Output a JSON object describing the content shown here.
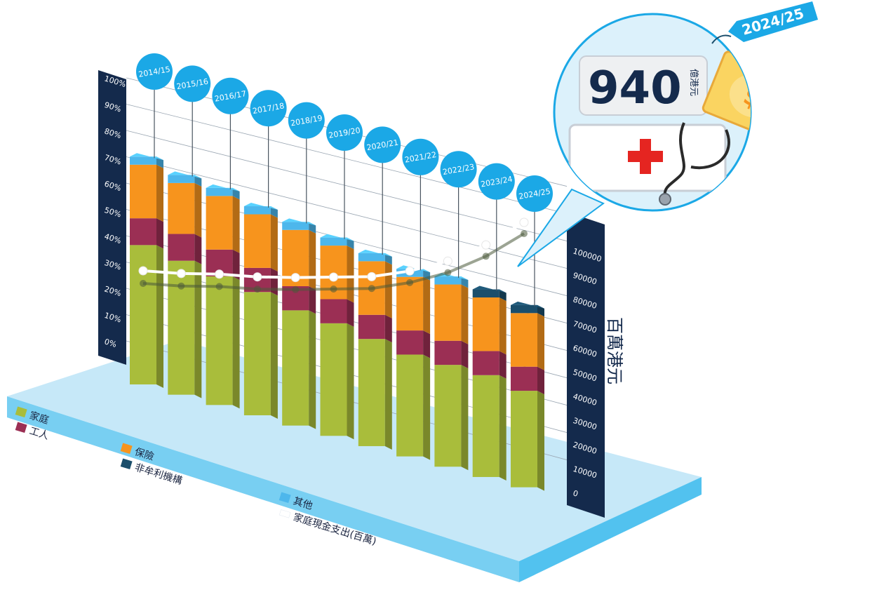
{
  "chart_data": {
    "type": "bar",
    "stacked": true,
    "categories": [
      "2014/15",
      "2015/16",
      "2016/17",
      "2017/18",
      "2018/19",
      "2019/20",
      "2020/21",
      "2021/22",
      "2022/23",
      "2023/24",
      "2024/25"
    ],
    "series": [
      {
        "name": "家庭",
        "values": [
          52,
          50,
          48,
          46,
          43,
          42,
          40,
          38,
          38,
          38,
          36
        ],
        "color": "#a9bd3b"
      },
      {
        "name": "工人",
        "values": [
          10,
          10,
          10,
          9,
          9,
          9,
          9,
          9,
          9,
          9,
          9
        ],
        "color": "#9b2f54"
      },
      {
        "name": "保險",
        "values": [
          20,
          19,
          20,
          20,
          21,
          20,
          20,
          20,
          21,
          20,
          20
        ],
        "color": "#f7941d"
      },
      {
        "name": "非牟利機構",
        "values": [
          0,
          0,
          0,
          0,
          0,
          0,
          0,
          0,
          0,
          3,
          3
        ],
        "color": "#1b4e6b"
      },
      {
        "name": "其他",
        "values": [
          3,
          3,
          3,
          3,
          3,
          3,
          3,
          3,
          3,
          0,
          0
        ],
        "color": "#4db7ec"
      }
    ],
    "line_series": {
      "name": "家庭現金支出(百萬)",
      "values": [
        54000,
        53000,
        53000,
        52000,
        52000,
        52500,
        53000,
        56000,
        61000,
        69000,
        80000
      ],
      "color": "#ffffff"
    },
    "left_axis": {
      "ticks": [
        "0%",
        "10%",
        "20%",
        "30%",
        "40%",
        "50%",
        "60%",
        "70%",
        "80%",
        "90%",
        "100%"
      ],
      "ylim": [
        0,
        100
      ]
    },
    "right_axis": {
      "label": "百萬港元",
      "ticks": [
        "0",
        "10000",
        "20000",
        "30000",
        "40000",
        "50000",
        "60000",
        "70000",
        "80000",
        "90000",
        "100000"
      ],
      "ylim": [
        0,
        100000
      ]
    },
    "legend_placement": "bottom-left, on the base slab"
  },
  "callout": {
    "year_tag": "2024/25",
    "amount": "940",
    "unit": "億港元"
  },
  "colors": {
    "slab_top": "#c6e8f8",
    "slab_front": "#52c2ef",
    "axis_panel": "#142a4c",
    "bubble": "#1ba8e6",
    "callout_bg": "#dcf1fb"
  }
}
